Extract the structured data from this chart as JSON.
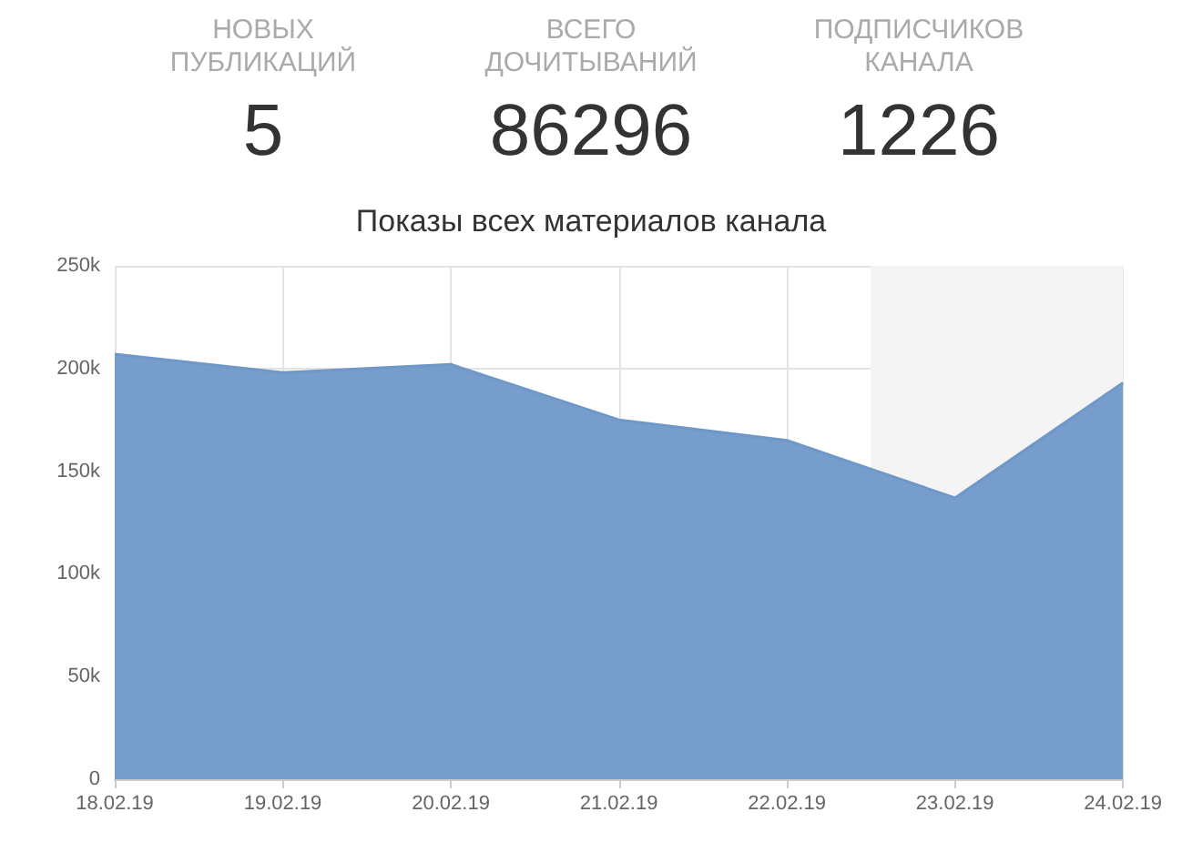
{
  "chart_data": [
    {
      "type": "other",
      "categories": [
        "НОВЫХ\nПУБЛИКАЦИЙ",
        "ВСЕГО\nДОЧИТЫВАНИЙ",
        "ПОДПИСЧИКОВ\nКАНАЛА"
      ],
      "values": [
        5,
        86296,
        1226
      ],
      "data_labels": true
    },
    {
      "type": "area",
      "title": "Показы всех материалов канала",
      "x": [
        "--02-18",
        "--02-19",
        "--02-20",
        "--02-21",
        "--02-22",
        "--02-23",
        "--02-24"
      ],
      "series": [
        {
          "color": "#6f98c8",
          "values": [
            207000,
            198000,
            202000,
            175000,
            165000,
            137000,
            193000
          ]
        }
      ],
      "xlim": [
        "--02-18",
        "--02-24"
      ],
      "xticks": [
        {
          "value": "--02-18",
          "label": "18.02.19"
        },
        {
          "value": "--02-19",
          "label": "19.02.19"
        },
        {
          "value": "--02-20",
          "label": "20.02.19"
        },
        {
          "value": "--02-21",
          "label": "21.02.19"
        },
        {
          "value": "--02-22",
          "label": "22.02.19"
        },
        {
          "value": "--02-23",
          "label": "23.02.19"
        },
        {
          "value": "--02-24",
          "label": "24.02.19"
        }
      ],
      "ylim": [
        0,
        250000
      ],
      "yticks": [
        0,
        {
          "value": 50000,
          "label": "50k"
        },
        {
          "value": 100000,
          "label": "100k"
        },
        {
          "value": 150000,
          "label": "150k"
        },
        {
          "value": 200000,
          "label": "200k"
        },
        {
          "value": 250000,
          "label": "250k"
        }
      ],
      "bands": [
        {
          "axis": "x",
          "from": "--02-22T12:00",
          "to": "--02-24",
          "color": "#f4f4f4"
        }
      ],
      "grid": true,
      "marker": "none"
    }
  ]
}
